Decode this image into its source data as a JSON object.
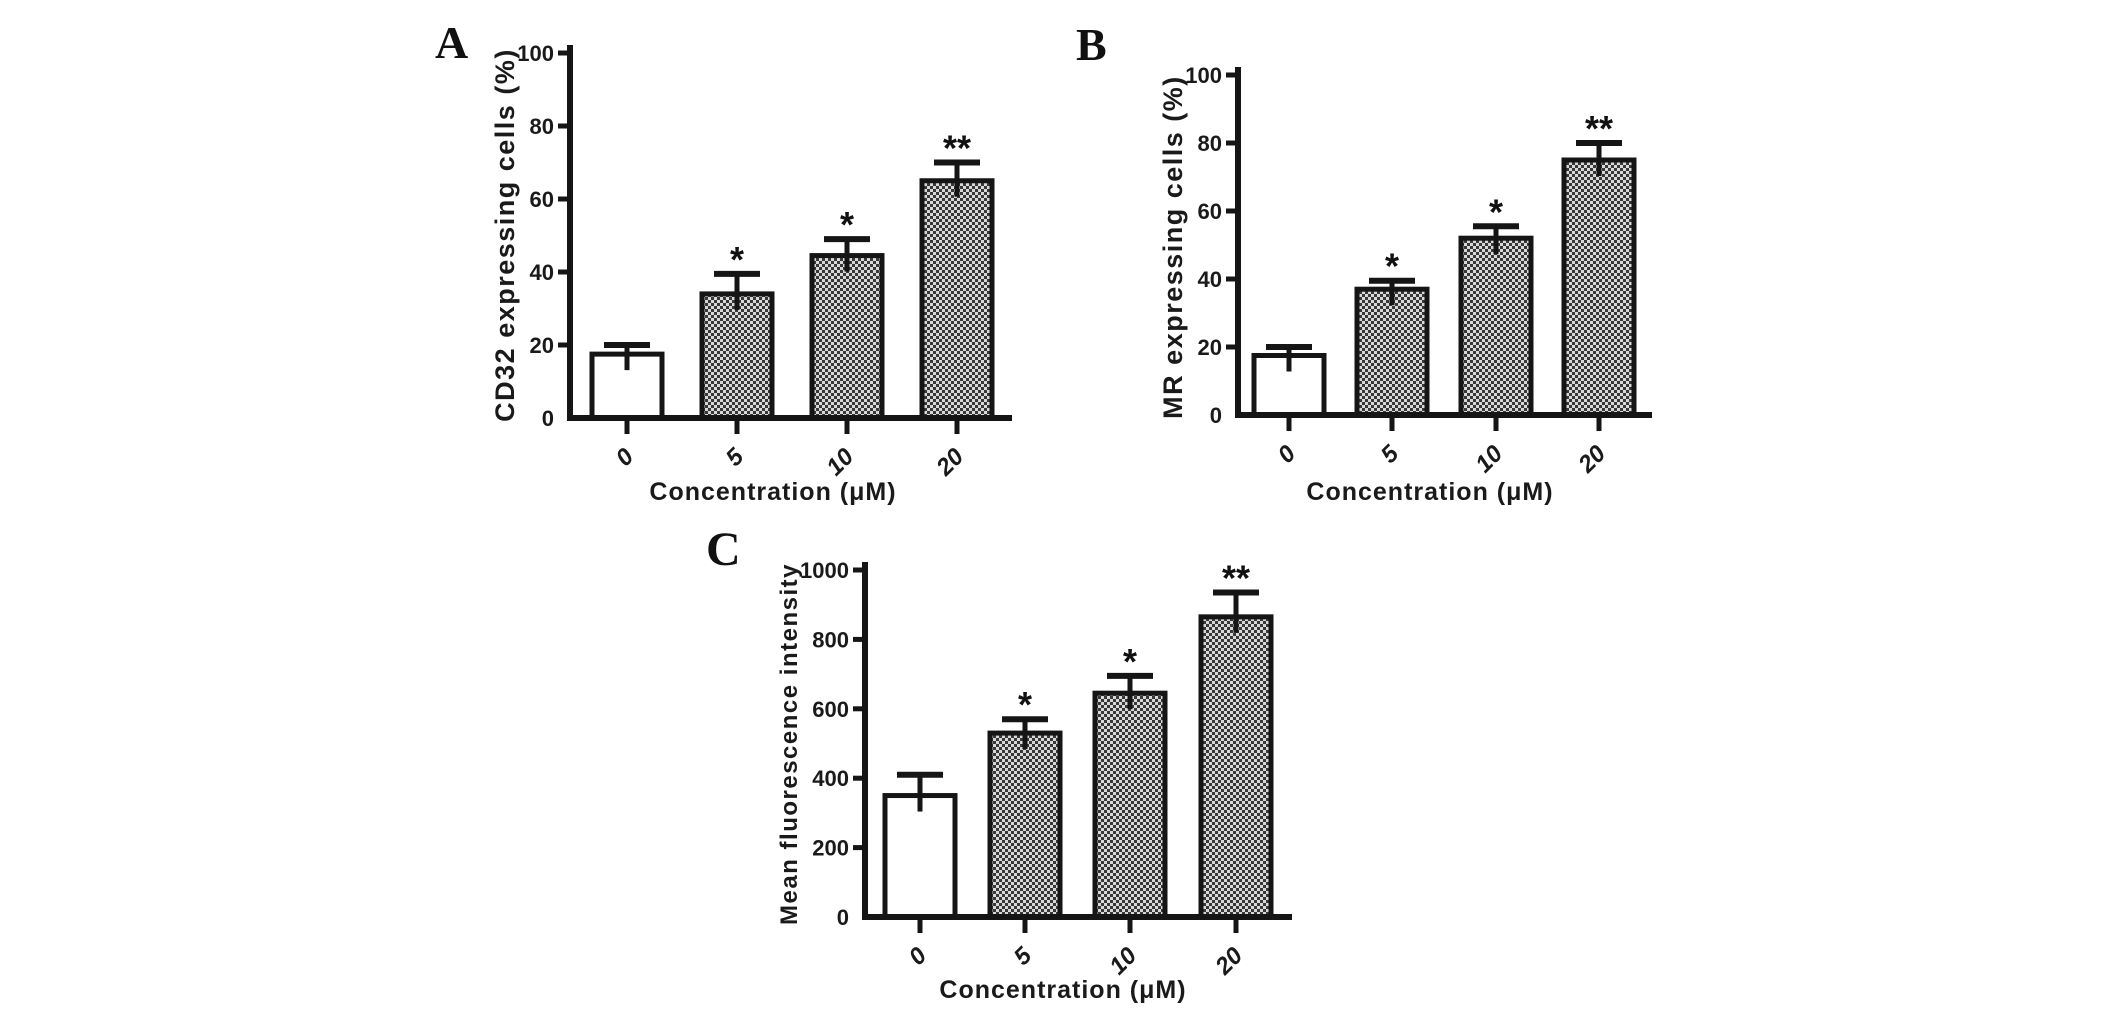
{
  "figure": {
    "background": "#ffffff",
    "ink": "#151515",
    "bar_fill_open": "#ffffff",
    "bar_pattern_light": "#d8d8d8",
    "bar_pattern_dark": "#383838"
  },
  "chart_data": [
    {
      "type": "bar",
      "panel": "A",
      "categories": [
        "0",
        "5",
        "10",
        "20"
      ],
      "values": [
        17.5,
        34,
        44.5,
        65
      ],
      "errors_plus": [
        2.5,
        5.5,
        4.5,
        5
      ],
      "significance": [
        "",
        "*",
        "*",
        "**"
      ],
      "bar_styles": [
        "open",
        "checker",
        "checker",
        "checker"
      ],
      "xlabel": "Concentration (μM)",
      "ylabel": "CD32 expressing cells (%)",
      "ylim": [
        0,
        100
      ],
      "ytick_interval": 20,
      "grid": false,
      "legend": "none"
    },
    {
      "type": "bar",
      "panel": "B",
      "categories": [
        "0",
        "5",
        "10",
        "20"
      ],
      "values": [
        17.5,
        37,
        52,
        75
      ],
      "errors_plus": [
        2.5,
        2.5,
        3.5,
        5
      ],
      "significance": [
        "",
        "*",
        "*",
        "**"
      ],
      "bar_styles": [
        "open",
        "checker",
        "checker",
        "checker"
      ],
      "xlabel": "Concentration (μM)",
      "ylabel": "MR expressing cells (%)",
      "ylim": [
        0,
        100
      ],
      "ytick_interval": 20,
      "grid": false,
      "legend": "none"
    },
    {
      "type": "bar",
      "panel": "C",
      "categories": [
        "0",
        "5",
        "10",
        "20"
      ],
      "values": [
        350,
        530,
        645,
        865
      ],
      "errors_plus": [
        60,
        40,
        50,
        70
      ],
      "significance": [
        "",
        "*",
        "*",
        "**"
      ],
      "bar_styles": [
        "open",
        "checker",
        "checker",
        "checker"
      ],
      "xlabel": "Concentration (μM)",
      "ylabel": "Mean fluorescence intensity",
      "ylim": [
        0,
        1000
      ],
      "ytick_interval": 200,
      "grid": false,
      "legend": "none"
    }
  ]
}
